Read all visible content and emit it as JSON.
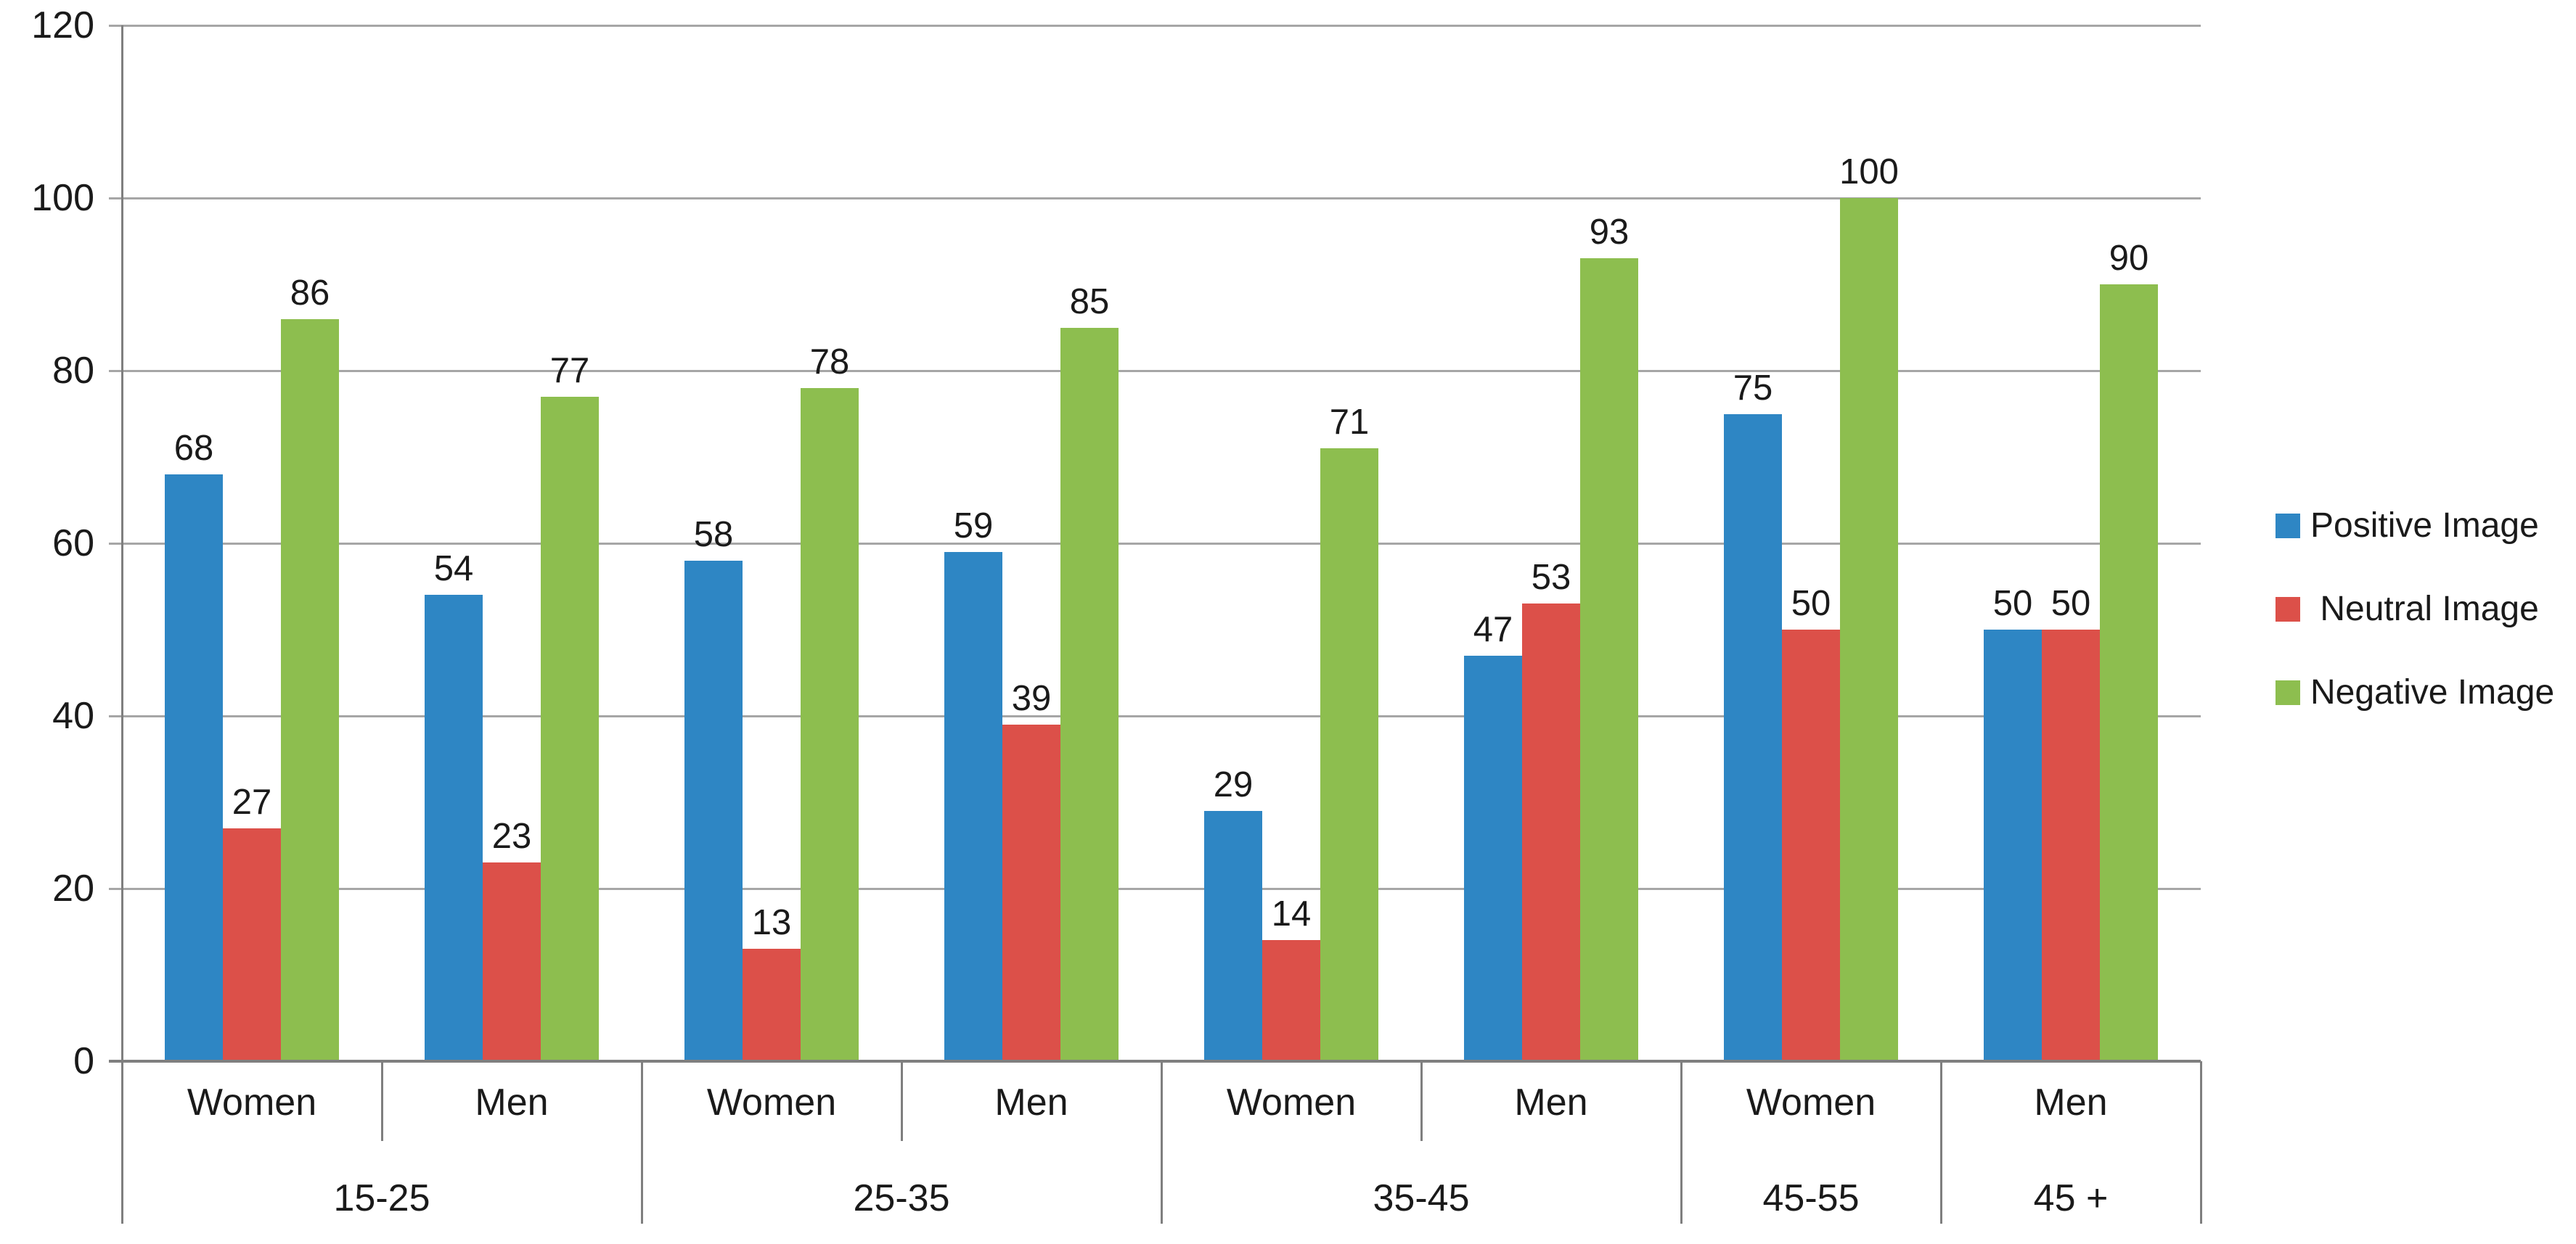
{
  "chart_data": {
    "type": "bar",
    "title": "",
    "xlabel": "",
    "ylabel": "",
    "ylim": [
      0,
      120
    ],
    "yticks": [
      0,
      20,
      40,
      60,
      80,
      100,
      120
    ],
    "grid": true,
    "legend_position": "right",
    "colors": {
      "grid": "#a6a6a6",
      "axis": "#7f7f7f",
      "text": "#1a1a1a",
      "background": "#ffffff"
    },
    "series_names": [
      "Positive Image",
      "Neutral Image",
      "Negative Image"
    ],
    "legend": [
      {
        "label": "Positive Image",
        "color": "#2e86c4"
      },
      {
        "label": " Neutral Image",
        "color": "#dc5049"
      },
      {
        "label": "Negative Image",
        "color": "#8dbe4f"
      }
    ],
    "groups": [
      {
        "age": "15-25",
        "subgroups": [
          {
            "label": "Women",
            "values": [
              68,
              27,
              86
            ]
          },
          {
            "label": "Men",
            "values": [
              54,
              23,
              77
            ]
          }
        ]
      },
      {
        "age": "25-35",
        "subgroups": [
          {
            "label": "Women",
            "values": [
              58,
              13,
              78
            ]
          },
          {
            "label": "Men",
            "values": [
              59,
              39,
              85
            ]
          }
        ]
      },
      {
        "age": "35-45",
        "subgroups": [
          {
            "label": "Women",
            "values": [
              29,
              14,
              71
            ]
          },
          {
            "label": "Men",
            "values": [
              47,
              53,
              93
            ]
          }
        ]
      },
      {
        "age": "45-55",
        "subgroups": [
          {
            "label": "Women",
            "values": [
              75,
              50,
              100
            ]
          }
        ]
      },
      {
        "age": "45 +",
        "subgroups": [
          {
            "label": "Men",
            "values": [
              50,
              50,
              90
            ]
          }
        ]
      }
    ]
  }
}
